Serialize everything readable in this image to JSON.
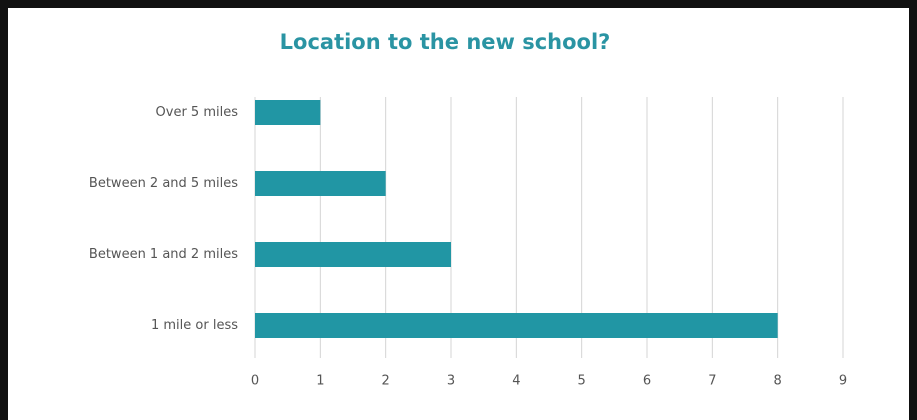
{
  "chart_data": {
    "type": "bar",
    "orientation": "horizontal",
    "title": "Location to the new school?",
    "categories": [
      "Over 5 miles",
      "Between 2 and 5 miles",
      "Between 1 and 2 miles",
      "1 mile or less"
    ],
    "values": [
      1,
      2,
      3,
      8
    ],
    "color": "#2196a4",
    "xlim": [
      0,
      9
    ],
    "xticks": [
      0,
      1,
      2,
      3,
      4,
      5,
      6,
      7,
      8,
      9
    ],
    "grid": true
  }
}
